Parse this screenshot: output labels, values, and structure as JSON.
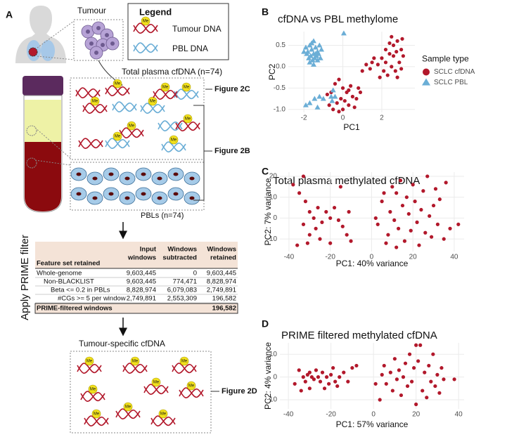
{
  "panel_labels": [
    "A",
    "B",
    "C",
    "D"
  ],
  "diagram": {
    "tumour": "Tumour",
    "legend_title": "Legend",
    "legend_tumour": "Tumour DNA",
    "legend_pbl": "PBL DNA",
    "methyl": "Me",
    "total_plasma": "Total plasma cfDNA (n=74)",
    "fig_2c": "Figure 2C",
    "fig_2b": "Figure 2B",
    "pbls": "PBLs (n=74)",
    "apply": "Apply PRIME filter",
    "tumour_specific": "Tumour-specific cfDNA",
    "fig_2d": "Figure 2D"
  },
  "table": {
    "header": [
      [
        "Feature set retained"
      ],
      [
        "Input",
        "windows"
      ],
      [
        "Windows",
        "subtracted"
      ],
      [
        "Windows",
        "retained"
      ]
    ],
    "rows": [
      [
        "Whole-genome",
        "9,603,445",
        "0",
        "9,603,445"
      ],
      [
        "Non-BLACKLIST",
        "9,603,445",
        "774,471",
        "8,828,974"
      ],
      [
        "Beta <= 0.2 in PBLs",
        "8,828,974",
        "6,079,083",
        "2,749,891"
      ],
      [
        "#CGs >= 5 per window",
        "2,749,891",
        "2,553,309",
        "196,582"
      ]
    ],
    "footer": [
      "PRIME-filtered windows",
      "196,582"
    ]
  },
  "chart_data": [
    {
      "type": "scatter",
      "title": "cfDNA vs PBL methylome",
      "x_label": "PC1",
      "y_label": "PC2",
      "legend_title": "Sample type",
      "legend": "right",
      "grid": true,
      "xlim": [
        -2.8,
        3.7
      ],
      "ylim": [
        -1.07,
        0.82
      ],
      "xticks": [
        -2,
        0,
        2
      ],
      "yticks": [
        0.5,
        {
          "value": 0,
          "label": "0.0"
        },
        -0.5,
        {
          "value": -1,
          "label": "-1.0"
        }
      ],
      "series": [
        {
          "name": "SCLC cfDNA",
          "color": "#b2182b",
          "marker": "circle",
          "x": [
            1.8,
            2.0,
            2.2,
            2.4,
            2.6,
            2.8,
            3.0,
            2.5,
            2.7,
            2.9,
            3.1,
            2.3,
            2.1,
            1.6,
            1.4,
            1.2,
            1.0,
            2.6,
            2.8,
            3.0,
            2.4,
            2.2,
            1.9,
            2.5,
            3.05,
            1.5,
            2.75,
            0.3,
            -0.7,
            -0.5,
            -0.3,
            -0.1,
            0.1,
            0.3,
            0.5,
            0.7,
            0.9,
            -0.4,
            -0.2,
            0.0,
            0.2,
            0.4,
            -0.6,
            -0.2,
            0.0,
            0.6,
            -0.8,
            0.8
          ],
          "values": [
            0.05,
            0.2,
            0.1,
            0.3,
            0.5,
            0.6,
            0.4,
            0.0,
            -0.1,
            0.1,
            0.25,
            -0.2,
            -0.1,
            0.2,
            -0.05,
            0.05,
            -0.1,
            0.25,
            -0.25,
            -0.05,
            0.55,
            0.4,
            -0.25,
            0.7,
            0.65,
            0.1,
            0.35,
            -0.55,
            -0.9,
            -1.0,
            -0.85,
            -0.75,
            -0.8,
            -0.9,
            -0.7,
            -0.75,
            -0.6,
            -0.4,
            -0.3,
            -0.5,
            -0.6,
            -0.45,
            -0.6,
            -1.05,
            -1.0,
            -0.95,
            -0.65,
            -0.5
          ]
        },
        {
          "name": "SCLC PBL",
          "color": "#6baed6",
          "marker": "triangle",
          "x": [
            -1.9,
            -1.8,
            -1.7,
            -1.6,
            -1.5,
            -1.4,
            -1.3,
            -1.2,
            -1.75,
            -1.65,
            -1.55,
            -1.45,
            -1.35,
            -1.25,
            -1.85,
            -1.6,
            -1.5,
            -1.4,
            -1.3,
            -1.7,
            -2.0,
            -1.1,
            -1.15,
            -1.5,
            -1.45,
            -1.7,
            -1.3,
            -1.9,
            -1.0,
            -1.2,
            -0.6,
            -0.5,
            -0.4,
            0.05,
            -0.55
          ],
          "values": [
            0.45,
            0.35,
            0.5,
            0.4,
            0.3,
            0.45,
            0.35,
            0.5,
            0.2,
            0.25,
            0.15,
            0.2,
            0.25,
            0.3,
            0.3,
            0.55,
            0.6,
            0.3,
            0.15,
            0.1,
            0.35,
            0.4,
            0.2,
            0.05,
            -0.75,
            -0.85,
            -0.95,
            -0.9,
            -0.75,
            -0.7,
            -0.7,
            -0.55,
            -0.7,
            0.78,
            -0.8
          ]
        }
      ]
    },
    {
      "type": "scatter",
      "title": "Total plasma methylated cfDNA",
      "x_label": "PC1: 40% variance",
      "y_label": "PC2: 7% variance",
      "grid": true,
      "xlim": [
        -44.4,
        44.8
      ],
      "ylim": [
        -16,
        22
      ],
      "xticks": [
        -40,
        -20,
        0,
        20,
        40
      ],
      "yticks": [
        -10,
        0,
        10,
        20
      ],
      "series": [
        {
          "color": "#b2182b",
          "marker": "circle",
          "x": [
            -38,
            -35,
            -33,
            -32,
            -30,
            -28,
            -27,
            -26,
            -25,
            -30,
            -33,
            -36,
            -31,
            -24,
            -22,
            -20,
            -18,
            -16,
            -14,
            -12,
            -10,
            -11,
            -15,
            -20,
            3,
            5,
            6,
            8,
            9,
            10,
            11,
            12,
            13,
            14,
            15,
            16,
            17,
            18,
            19,
            20,
            21,
            22,
            23,
            24,
            25,
            26,
            27,
            28,
            29,
            30,
            31,
            32,
            33,
            35,
            36,
            38,
            42,
            2,
            7,
            12
          ],
          "values": [
            16,
            12,
            20,
            8,
            3,
            0,
            -5,
            5,
            -10,
            -8,
            -3,
            -13,
            -12,
            -2,
            3,
            0,
            5,
            -1,
            -4,
            -8,
            -11,
            3,
            15,
            -12,
            -3,
            8,
            12,
            -8,
            3,
            15,
            -1,
            12,
            -5,
            18,
            6,
            -11,
            10,
            2,
            -6,
            16,
            8,
            -2,
            -13,
            4,
            13,
            -7,
            20,
            1,
            -9,
            6,
            14,
            -3,
            9,
            -10,
            17,
            -5,
            -3,
            0,
            -12,
            -14
          ]
        }
      ]
    },
    {
      "type": "scatter",
      "title": "PRIME filtered methylated cfDNA",
      "x_label": "PC1: 57% variance",
      "y_label": "PC2: 4% variance",
      "grid": true,
      "xlim": [
        -44,
        42.6
      ],
      "ylim": [
        -14,
        15
      ],
      "xticks": [
        -40,
        -20,
        0,
        20,
        40
      ],
      "yticks": [
        -10,
        0,
        10
      ],
      "series": [
        {
          "color": "#b2182b",
          "marker": "circle",
          "x": [
            -37,
            -35,
            -33,
            -32,
            -31,
            -30,
            -29,
            -28,
            -27,
            -26,
            -25,
            -24,
            -23,
            -22,
            -21,
            -20,
            -19,
            -18,
            -17,
            -16,
            -14,
            -12,
            -10,
            -8,
            -30,
            -34,
            3,
            4,
            5,
            6,
            8,
            9,
            10,
            11,
            12,
            13,
            14,
            15,
            16,
            17,
            18,
            19,
            20,
            21,
            22,
            23,
            24,
            25,
            26,
            27,
            28,
            29,
            30,
            31,
            32,
            33,
            38,
            20,
            1
          ],
          "values": [
            -3,
            3,
            0,
            -2,
            1,
            2,
            0,
            -1,
            3,
            0,
            -2,
            2,
            -5,
            0,
            -3,
            1,
            4,
            -2,
            -4,
            0,
            2,
            -2,
            4,
            5,
            -5,
            -6,
            -10,
            1,
            5,
            -3,
            2,
            -6,
            8,
            -1,
            3,
            -8,
            0,
            6,
            -4,
            10,
            -2,
            4,
            -12,
            7,
            14,
            -6,
            2,
            -9,
            5,
            -2,
            10,
            -4,
            1,
            -7,
            4,
            -1,
            -1,
            14,
            -3
          ]
        }
      ]
    }
  ]
}
